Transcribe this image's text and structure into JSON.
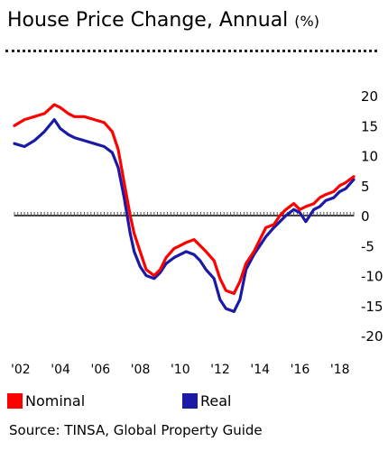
{
  "title": "House Price Change, Annual",
  "title_unit": "(%)",
  "source": "Source: TINSA, Global Property Guide",
  "colors": {
    "nominal": "#ff0000",
    "real": "#1a1aa6",
    "zero_line": "#000000",
    "ticks": "#555555"
  },
  "chart_data": {
    "type": "line",
    "title": "House Price Change, Annual",
    "ylabel": "",
    "xlabel": "",
    "ylim": [
      -20,
      20
    ],
    "xlim": [
      2002,
      2019
    ],
    "y_ticks": [
      20,
      15,
      10,
      5,
      0,
      -5,
      -10,
      -15,
      -20
    ],
    "x_ticks": [
      {
        "value": 2002,
        "label": "'02"
      },
      {
        "value": 2004,
        "label": "'04"
      },
      {
        "value": 2006,
        "label": "'06"
      },
      {
        "value": 2008,
        "label": "'08"
      },
      {
        "value": 2010,
        "label": "'10"
      },
      {
        "value": 2012,
        "label": "'12"
      },
      {
        "value": 2014,
        "label": "'14"
      },
      {
        "value": 2016,
        "label": "'16"
      },
      {
        "value": 2018,
        "label": "'18"
      }
    ],
    "legend_position": "bottom",
    "grid": false,
    "series": [
      {
        "name": "Nominal",
        "color": "#ff0000",
        "x": [
          2002.0,
          2002.5,
          2003.0,
          2003.5,
          2004.0,
          2004.3,
          2004.7,
          2005.0,
          2005.5,
          2006.0,
          2006.5,
          2006.9,
          2007.2,
          2007.5,
          2007.8,
          2008.0,
          2008.3,
          2008.6,
          2009.0,
          2009.3,
          2009.6,
          2010.0,
          2010.3,
          2010.6,
          2011.0,
          2011.3,
          2011.6,
          2012.0,
          2012.3,
          2012.6,
          2013.0,
          2013.3,
          2013.6,
          2014.0,
          2014.3,
          2014.6,
          2015.0,
          2015.3,
          2015.6,
          2016.0,
          2016.3,
          2016.6,
          2017.0,
          2017.3,
          2017.6,
          2018.0,
          2018.3,
          2018.6,
          2019.0
        ],
        "values": [
          15,
          16,
          16.5,
          17,
          18.5,
          18,
          17,
          16.5,
          16.5,
          16,
          15.5,
          14,
          11,
          5.5,
          0,
          -3,
          -6,
          -9,
          -10,
          -9,
          -7,
          -5.5,
          -5,
          -4.5,
          -4,
          -5,
          -6,
          -7.5,
          -10.5,
          -12.5,
          -13,
          -11,
          -8,
          -6,
          -4,
          -2,
          -1.5,
          0,
          1,
          2,
          1,
          1.5,
          2,
          3,
          3.5,
          4,
          5,
          5.5,
          6.5
        ]
      },
      {
        "name": "Real",
        "color": "#1a1aa6",
        "x": [
          2002.0,
          2002.5,
          2003.0,
          2003.5,
          2004.0,
          2004.3,
          2004.7,
          2005.0,
          2005.5,
          2006.0,
          2006.5,
          2006.9,
          2007.2,
          2007.5,
          2007.8,
          2008.0,
          2008.3,
          2008.6,
          2009.0,
          2009.3,
          2009.6,
          2010.0,
          2010.3,
          2010.6,
          2011.0,
          2011.3,
          2011.6,
          2012.0,
          2012.3,
          2012.6,
          2013.0,
          2013.3,
          2013.6,
          2014.0,
          2014.3,
          2014.6,
          2015.0,
          2015.3,
          2015.6,
          2016.0,
          2016.3,
          2016.6,
          2017.0,
          2017.3,
          2017.6,
          2018.0,
          2018.3,
          2018.6,
          2019.0
        ],
        "values": [
          12,
          11.5,
          12.5,
          14,
          16,
          14.5,
          13.5,
          13,
          12.5,
          12,
          11.5,
          10.5,
          8,
          3,
          -3,
          -6,
          -8.5,
          -10,
          -10.5,
          -9.5,
          -8,
          -7,
          -6.5,
          -6,
          -6.5,
          -7.5,
          -9,
          -10.5,
          -14,
          -15.5,
          -16,
          -14,
          -9,
          -6.5,
          -5,
          -3.5,
          -2,
          -1,
          0,
          1,
          0.5,
          -1,
          1,
          1.5,
          2.5,
          3,
          4,
          4.5,
          6
        ]
      }
    ]
  }
}
